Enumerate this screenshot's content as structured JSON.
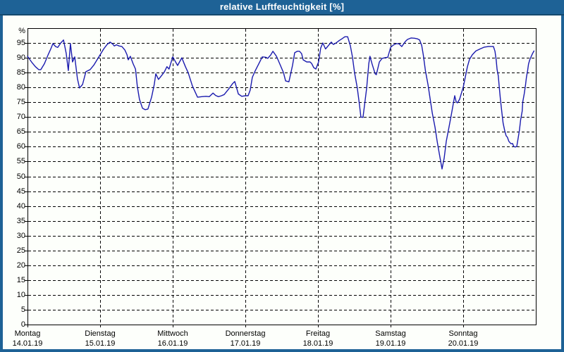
{
  "window": {
    "title": "relative Luftfeuchtigkeit [%]"
  },
  "colors": {
    "frame_blue": "#1e6296",
    "frame_dark_edge": "#14496e",
    "plot_line": "#1a1aae",
    "grid": "#000000",
    "plot_bg": "#fdfffb",
    "text": "#000000"
  },
  "chart_data": {
    "type": "line",
    "title": "relative Luftfeuchtigkeit [%]",
    "ylabel_unit": "%",
    "ylim": [
      0,
      100
    ],
    "ytick_step": 5,
    "yticks": [
      0,
      5,
      10,
      15,
      20,
      25,
      30,
      35,
      40,
      45,
      50,
      55,
      60,
      65,
      70,
      75,
      80,
      85,
      90,
      95
    ],
    "xlim_hours": [
      0,
      168
    ],
    "grid": "dashed",
    "legend": "none",
    "days": [
      {
        "label": "Montag",
        "date": "14.01.19"
      },
      {
        "label": "Dienstag",
        "date": "15.01.19"
      },
      {
        "label": "Mittwoch",
        "date": "16.01.19"
      },
      {
        "label": "Donnerstag",
        "date": "17.01.19"
      },
      {
        "label": "Freitag",
        "date": "18.01.19"
      },
      {
        "label": "Samstag",
        "date": "19.01.19"
      },
      {
        "label": "Sonntag",
        "date": "20.01.19"
      }
    ],
    "series": [
      {
        "name": "relative Luftfeuchtigkeit",
        "points": [
          [
            0,
            90.5
          ],
          [
            1.4,
            88.5
          ],
          [
            2.6,
            87
          ],
          [
            3.7,
            86
          ],
          [
            4.4,
            86
          ],
          [
            5.6,
            88
          ],
          [
            6.8,
            91
          ],
          [
            7.7,
            93
          ],
          [
            8.4,
            94.8
          ],
          [
            9.3,
            93.8
          ],
          [
            10,
            93.5
          ],
          [
            11,
            95
          ],
          [
            11.9,
            96
          ],
          [
            12.8,
            91.5
          ],
          [
            13.5,
            85.7
          ],
          [
            14.2,
            94.8
          ],
          [
            14.9,
            88.6
          ],
          [
            15.6,
            90.3
          ],
          [
            16.5,
            83
          ],
          [
            17.2,
            79.8
          ],
          [
            18.2,
            81
          ],
          [
            19.3,
            85.3
          ],
          [
            20.7,
            86
          ],
          [
            21.9,
            87.5
          ],
          [
            23.1,
            89.5
          ],
          [
            24,
            91
          ],
          [
            25.2,
            93
          ],
          [
            26.3,
            94.5
          ],
          [
            27.3,
            95.3
          ],
          [
            28.2,
            94.6
          ],
          [
            28.7,
            94
          ],
          [
            29.4,
            94.4
          ],
          [
            30.3,
            94
          ],
          [
            31.2,
            93.8
          ],
          [
            32.2,
            92.6
          ],
          [
            32.9,
            91
          ],
          [
            33.3,
            89.3
          ],
          [
            34,
            90.5
          ],
          [
            34.9,
            88
          ],
          [
            35.7,
            86.2
          ],
          [
            36.3,
            80.3
          ],
          [
            37,
            76
          ],
          [
            38,
            73
          ],
          [
            38.9,
            72.5
          ],
          [
            39.8,
            72.7
          ],
          [
            41,
            76.7
          ],
          [
            41.9,
            81
          ],
          [
            42.4,
            84.6
          ],
          [
            43.3,
            82.7
          ],
          [
            44.3,
            84
          ],
          [
            45.2,
            85.2
          ],
          [
            46.1,
            87
          ],
          [
            46.8,
            86.2
          ],
          [
            48,
            90.3
          ],
          [
            49.6,
            87.4
          ],
          [
            51,
            90
          ],
          [
            52.2,
            87
          ],
          [
            53.1,
            85
          ],
          [
            54.5,
            80.5
          ],
          [
            56.2,
            76.7
          ],
          [
            57.6,
            76.9
          ],
          [
            59,
            77
          ],
          [
            60.1,
            76.9
          ],
          [
            61.3,
            78.1
          ],
          [
            62.2,
            77.3
          ],
          [
            63.1,
            76.9
          ],
          [
            64.1,
            77.2
          ],
          [
            65,
            77.6
          ],
          [
            66.6,
            79.6
          ],
          [
            67.8,
            81.3
          ],
          [
            68.5,
            82
          ],
          [
            69.7,
            77.8
          ],
          [
            70.8,
            77
          ],
          [
            72,
            77.2
          ],
          [
            72.9,
            77.2
          ],
          [
            73.6,
            79.1
          ],
          [
            74.3,
            83.4
          ],
          [
            75.3,
            85.7
          ],
          [
            76.4,
            87.9
          ],
          [
            77.6,
            90.3
          ],
          [
            78.7,
            90.2
          ],
          [
            79.4,
            89.8
          ],
          [
            80.4,
            91
          ],
          [
            81.1,
            92.2
          ],
          [
            82.3,
            90.5
          ],
          [
            83.4,
            87.9
          ],
          [
            84.6,
            85
          ],
          [
            85.3,
            82.2
          ],
          [
            86.4,
            81.9
          ],
          [
            87.6,
            87.4
          ],
          [
            88.3,
            91.7
          ],
          [
            89.2,
            92.2
          ],
          [
            89.9,
            92.2
          ],
          [
            90.6,
            91.4
          ],
          [
            91.1,
            89.3
          ],
          [
            92.3,
            88.6
          ],
          [
            93.4,
            88.6
          ],
          [
            93.9,
            88.1
          ],
          [
            94.6,
            86.7
          ],
          [
            95.3,
            86.2
          ],
          [
            96.2,
            88.6
          ],
          [
            96.9,
            93.3
          ],
          [
            97.6,
            95
          ],
          [
            98.5,
            93
          ],
          [
            99.2,
            93.8
          ],
          [
            100.4,
            95.3
          ],
          [
            101.1,
            94.5
          ],
          [
            102,
            95
          ],
          [
            103,
            95.8
          ],
          [
            103.9,
            96.4
          ],
          [
            104.9,
            97.1
          ],
          [
            105.8,
            97.1
          ],
          [
            106.7,
            94.1
          ],
          [
            107.4,
            90.3
          ],
          [
            108.1,
            85
          ],
          [
            109,
            79.8
          ],
          [
            109.7,
            74.3
          ],
          [
            110.2,
            70
          ],
          [
            110.9,
            69.9
          ],
          [
            112.1,
            79.8
          ],
          [
            112.8,
            88
          ],
          [
            113.2,
            90.5
          ],
          [
            113.9,
            87.9
          ],
          [
            114.9,
            84.6
          ],
          [
            115.3,
            84.3
          ],
          [
            116.3,
            88.6
          ],
          [
            117.2,
            89.8
          ],
          [
            118.1,
            90
          ],
          [
            119.1,
            90.2
          ],
          [
            120,
            93.5
          ],
          [
            120.9,
            94.3
          ],
          [
            121.9,
            94.8
          ],
          [
            122.8,
            94.7
          ],
          [
            123.7,
            93.8
          ],
          [
            124.9,
            95.5
          ],
          [
            125.6,
            96.2
          ],
          [
            126.8,
            96.7
          ],
          [
            127.9,
            96.6
          ],
          [
            128.9,
            96.4
          ],
          [
            129.6,
            96
          ],
          [
            130.3,
            94.1
          ],
          [
            130.8,
            91
          ],
          [
            131.5,
            85.7
          ],
          [
            132.4,
            80.8
          ],
          [
            133.1,
            76
          ],
          [
            133.8,
            71.3
          ],
          [
            134.7,
            66.5
          ],
          [
            135.4,
            61.8
          ],
          [
            136.1,
            57.7
          ],
          [
            136.6,
            54.9
          ],
          [
            137,
            52.5
          ],
          [
            137.7,
            56.1
          ],
          [
            138.4,
            61.8
          ],
          [
            139.3,
            66.5
          ],
          [
            140,
            70.3
          ],
          [
            140.7,
            74.3
          ],
          [
            141.2,
            77.2
          ],
          [
            141.7,
            75.1
          ],
          [
            142.1,
            74.8
          ],
          [
            142.8,
            76
          ],
          [
            143.5,
            78.4
          ],
          [
            144,
            80
          ],
          [
            144.7,
            83.5
          ],
          [
            145.4,
            87
          ],
          [
            146.1,
            89.5
          ],
          [
            147,
            91
          ],
          [
            148.2,
            92.3
          ],
          [
            149.6,
            93
          ],
          [
            151,
            93.6
          ],
          [
            152.4,
            93.8
          ],
          [
            154,
            93.8
          ],
          [
            154.5,
            92.2
          ],
          [
            154.9,
            89.3
          ],
          [
            155.2,
            86
          ],
          [
            155.6,
            83.9
          ],
          [
            155.9,
            80.3
          ],
          [
            156.3,
            76
          ],
          [
            156.8,
            71.5
          ],
          [
            157.2,
            68
          ],
          [
            157.7,
            65.5
          ],
          [
            158.2,
            63.7
          ],
          [
            158.6,
            63.2
          ],
          [
            159.1,
            61.8
          ],
          [
            159.8,
            61
          ],
          [
            160.3,
            61.1
          ],
          [
            160.7,
            60.1
          ],
          [
            161.2,
            59.9
          ],
          [
            161.7,
            60.1
          ],
          [
            162.1,
            62.5
          ],
          [
            162.6,
            65.6
          ],
          [
            163,
            69.1
          ],
          [
            163.5,
            72
          ],
          [
            163.7,
            75.1
          ],
          [
            164.2,
            78
          ],
          [
            164.6,
            80.8
          ],
          [
            164.9,
            83.4
          ],
          [
            165.3,
            85.7
          ],
          [
            165.6,
            87.9
          ],
          [
            166,
            89.3
          ],
          [
            166.5,
            90.5
          ],
          [
            166.9,
            91.4
          ],
          [
            167.4,
            92.3
          ]
        ]
      }
    ]
  }
}
